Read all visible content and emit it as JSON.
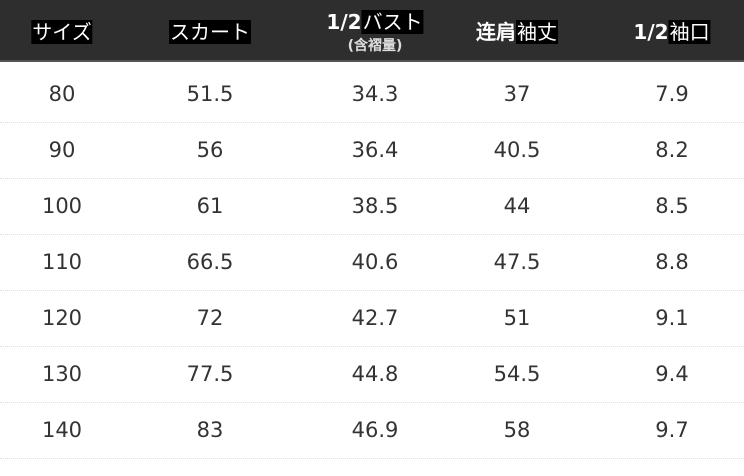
{
  "header": [
    {
      "pre": "",
      "main": "サイズ",
      "sub": ""
    },
    {
      "pre": "",
      "main": "スカート",
      "sub": ""
    },
    {
      "pre": "1/2",
      "main": "バスト",
      "sub": "(含褶量)"
    },
    {
      "pre": "连肩",
      "main": "袖丈",
      "sub": ""
    },
    {
      "pre": "1/2",
      "main": "袖口",
      "sub": ""
    }
  ],
  "rows": [
    [
      "80",
      "51.5",
      "34.3",
      "37",
      "7.9"
    ],
    [
      "90",
      "56",
      "36.4",
      "40.5",
      "8.2"
    ],
    [
      "100",
      "61",
      "38.5",
      "44",
      "8.5"
    ],
    [
      "110",
      "66.5",
      "40.6",
      "47.5",
      "8.8"
    ],
    [
      "120",
      "72",
      "42.7",
      "51",
      "9.1"
    ],
    [
      "130",
      "77.5",
      "44.8",
      "54.5",
      "9.4"
    ],
    [
      "140",
      "83",
      "46.9",
      "58",
      "9.7"
    ]
  ]
}
